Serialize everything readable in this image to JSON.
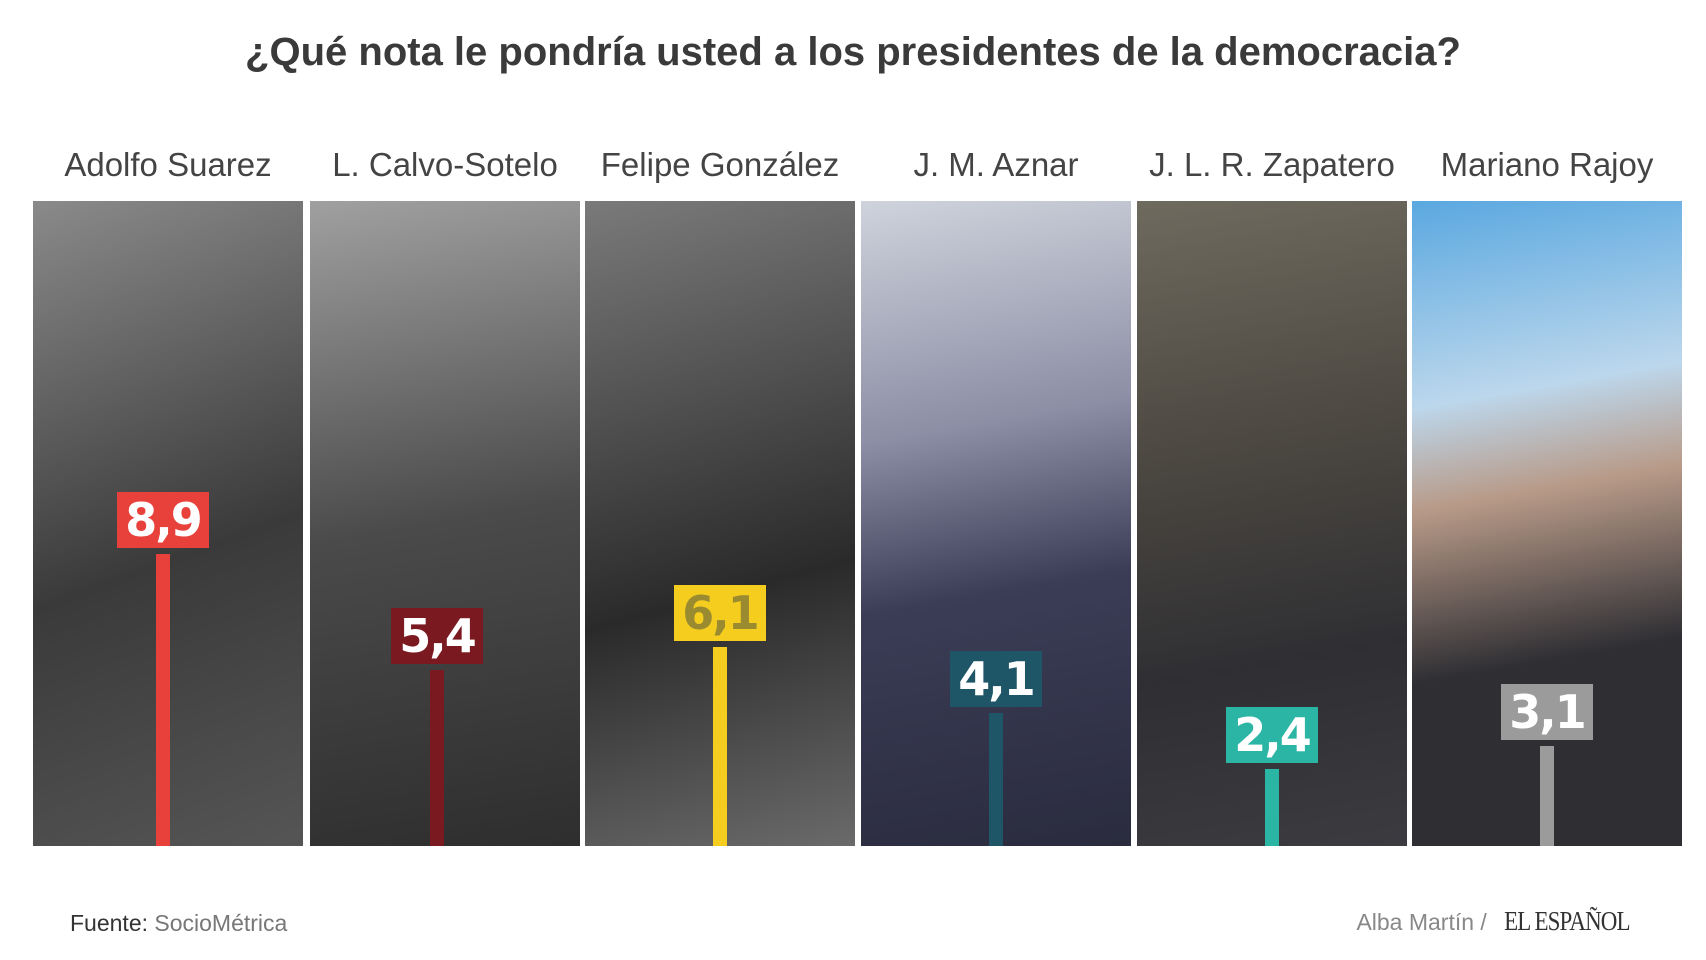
{
  "chart_data": {
    "type": "bar",
    "title": "¿Qué nota le pondría usted a los presidentes de la democracia?",
    "categories": [
      "Adolfo Suarez",
      "L. Calvo-Sotelo",
      "Felipe González",
      "J. M. Aznar",
      "J. L. R. Zapatero",
      "Mariano Rajoy"
    ],
    "values": [
      8.9,
      5.4,
      6.1,
      4.1,
      2.4,
      3.1
    ],
    "value_labels": [
      "8,9",
      "5,4",
      "6,1",
      "4,1",
      "2,4",
      "3,1"
    ],
    "colors": [
      "#e8413b",
      "#7a1a20",
      "#f5cd1e",
      "#1e5668",
      "#2ab5a5",
      "#9b9b9b"
    ],
    "photo_tones": [
      "bw",
      "bw",
      "bw",
      "color",
      "color",
      "color"
    ]
  },
  "footer": {
    "source_label": "Fuente:",
    "source": "SocioMétrica",
    "author": "Alba Martín /",
    "brand": "EL ESPAÑOL"
  }
}
